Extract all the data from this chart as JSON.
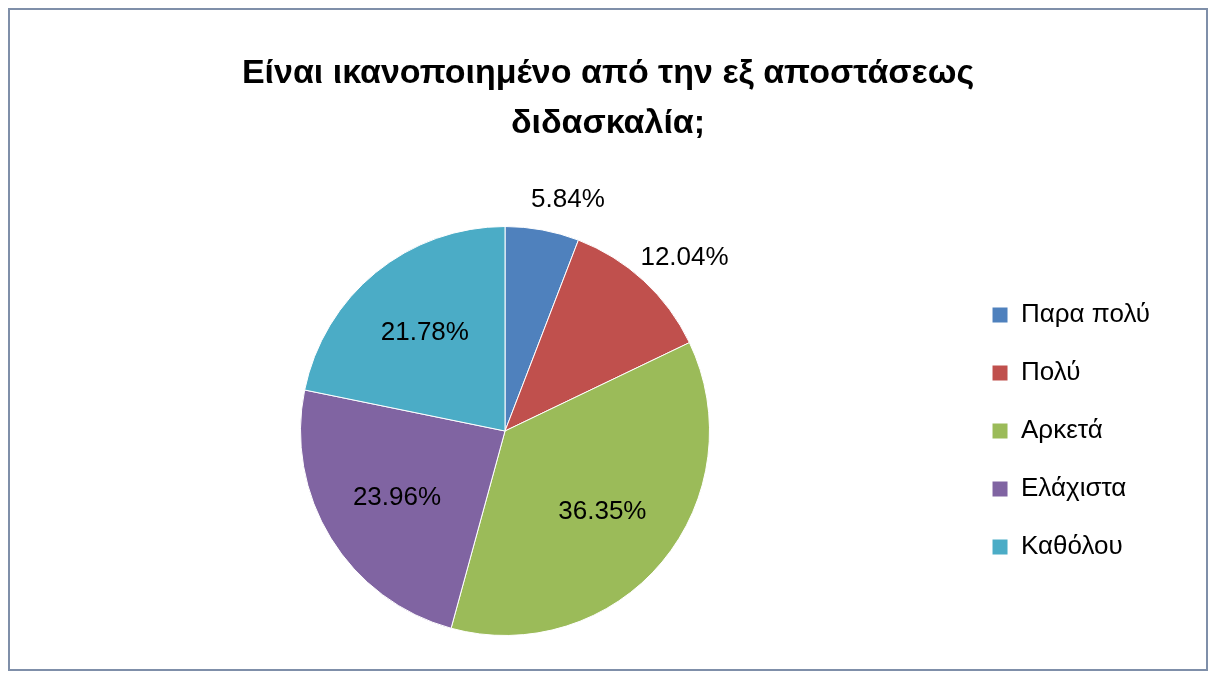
{
  "chart_data": {
    "type": "pie",
    "title": "Είναι ικανοποιημένο από την εξ αποστάσεως διδασκαλία;",
    "categories": [
      "Παρα πολύ",
      "Πολύ",
      "Αρκετά",
      "Ελάχιστα",
      "Καθόλου"
    ],
    "values": [
      5.84,
      12.04,
      36.35,
      23.96,
      21.78
    ],
    "value_labels": [
      "5.84%",
      "12.04%",
      "36.35%",
      "23.96%",
      "21.78%"
    ],
    "colors": [
      "#4f81bd",
      "#c0504d",
      "#9bbb59",
      "#8064a2",
      "#4bacc6"
    ],
    "legend": "right"
  }
}
